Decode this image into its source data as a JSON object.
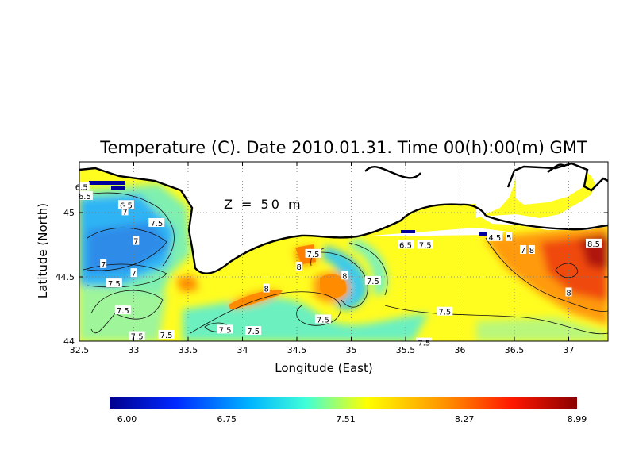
{
  "title": "Temperature (C). Date 2010.01.31. Time 00(h):00(m) GMT",
  "depth_label": "Z = 50 m",
  "xlabel": "Longitude (East)",
  "ylabel": "Latitude (North)",
  "x_ticks": [
    "32.5",
    "33",
    "33.5",
    "34",
    "34.5",
    "35",
    "35.5",
    "36",
    "36.5",
    "37"
  ],
  "y_ticks": [
    "44",
    "44.5",
    "45"
  ],
  "colorbar": {
    "ticks": [
      "6.00",
      "6.75",
      "7.51",
      "8.27",
      "8.99"
    ],
    "min": 6.0,
    "max": 8.99,
    "colors": [
      "#00008c",
      "#0028ff",
      "#00b4ff",
      "#40ffd8",
      "#ffff00",
      "#ff9000",
      "#ff1800",
      "#8a0000"
    ]
  },
  "contour_labels": [
    {
      "text": "6.5",
      "lon": 32.52,
      "lat": 45.2
    },
    {
      "text": "6.5",
      "lon": 32.55,
      "lat": 45.13
    },
    {
      "text": "6.5",
      "lon": 32.93,
      "lat": 45.06
    },
    {
      "text": "7",
      "lon": 32.92,
      "lat": 45.01
    },
    {
      "text": "7.5",
      "lon": 33.21,
      "lat": 44.92
    },
    {
      "text": "7",
      "lon": 33.02,
      "lat": 44.78
    },
    {
      "text": "7",
      "lon": 32.72,
      "lat": 44.6
    },
    {
      "text": "7",
      "lon": 33.0,
      "lat": 44.53
    },
    {
      "text": "7.5",
      "lon": 32.82,
      "lat": 44.45
    },
    {
      "text": "7.5",
      "lon": 32.9,
      "lat": 44.24
    },
    {
      "text": "7.5",
      "lon": 33.03,
      "lat": 44.04
    },
    {
      "text": "7.5",
      "lon": 33.3,
      "lat": 44.05
    },
    {
      "text": "7.5",
      "lon": 33.84,
      "lat": 44.09
    },
    {
      "text": "7.5",
      "lon": 34.1,
      "lat": 44.08
    },
    {
      "text": "7.5",
      "lon": 34.65,
      "lat": 44.68
    },
    {
      "text": "8",
      "lon": 34.52,
      "lat": 44.58
    },
    {
      "text": "8",
      "lon": 34.22,
      "lat": 44.41
    },
    {
      "text": "8",
      "lon": 34.94,
      "lat": 44.51
    },
    {
      "text": "7.5",
      "lon": 35.2,
      "lat": 44.47
    },
    {
      "text": "7.5",
      "lon": 34.74,
      "lat": 44.17
    },
    {
      "text": "6.5",
      "lon": 35.5,
      "lat": 44.75
    },
    {
      "text": "7.5",
      "lon": 35.68,
      "lat": 44.75
    },
    {
      "text": "4.5",
      "lon": 36.32,
      "lat": 44.81
    },
    {
      "text": "5",
      "lon": 36.45,
      "lat": 44.81
    },
    {
      "text": "7",
      "lon": 36.58,
      "lat": 44.71
    },
    {
      "text": "8",
      "lon": 36.66,
      "lat": 44.71
    },
    {
      "text": "8.5",
      "lon": 37.23,
      "lat": 44.76
    },
    {
      "text": "8",
      "lon": 37.0,
      "lat": 44.38
    },
    {
      "text": "7.5",
      "lon": 35.86,
      "lat": 44.23
    },
    {
      "text": "7.5",
      "lon": 35.67,
      "lat": 43.99
    }
  ]
}
